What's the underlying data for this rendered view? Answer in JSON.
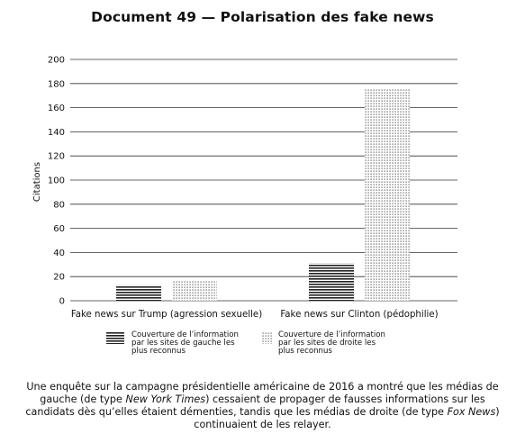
{
  "title": "Document 49 — Polarisation des fake news",
  "chart_data": {
    "type": "bar",
    "categories": [
      "Fake news sur Trump (agression sexuelle)",
      "Fake news sur Clinton (pédophilie)"
    ],
    "series": [
      {
        "name": "Couverture de l’information par les sites de gauche les plus reconnus",
        "values": [
          13,
          31
        ]
      },
      {
        "name": "Couverture de l’information par les sites de droite les plus reconnus",
        "values": [
          17,
          175
        ]
      }
    ],
    "ylabel": "Citations",
    "ylim": [
      0,
      200
    ],
    "yticks": [
      0,
      20,
      40,
      60,
      80,
      100,
      120,
      140,
      160,
      180,
      200
    ],
    "grid": true,
    "legend_position": "bottom"
  },
  "legend": {
    "left": [
      "Couverture de l’information",
      "par les sites de gauche les",
      "plus reconnus"
    ],
    "right": [
      "Couverture de l’information",
      "par les sites de droite les",
      "plus reconnus"
    ]
  },
  "caption": {
    "part1": "Une enquête sur la campagne présidentielle américaine de 2016 a montré que les médias de gauche (de type ",
    "em1": "New York Times",
    "part2": ") cessaient de propager de fausses informations sur les candidats dès qu’elles étaient démenties, tandis que les médias de droite (de type ",
    "em2": "Fox News",
    "part3": ") continuaient de les relayer."
  }
}
